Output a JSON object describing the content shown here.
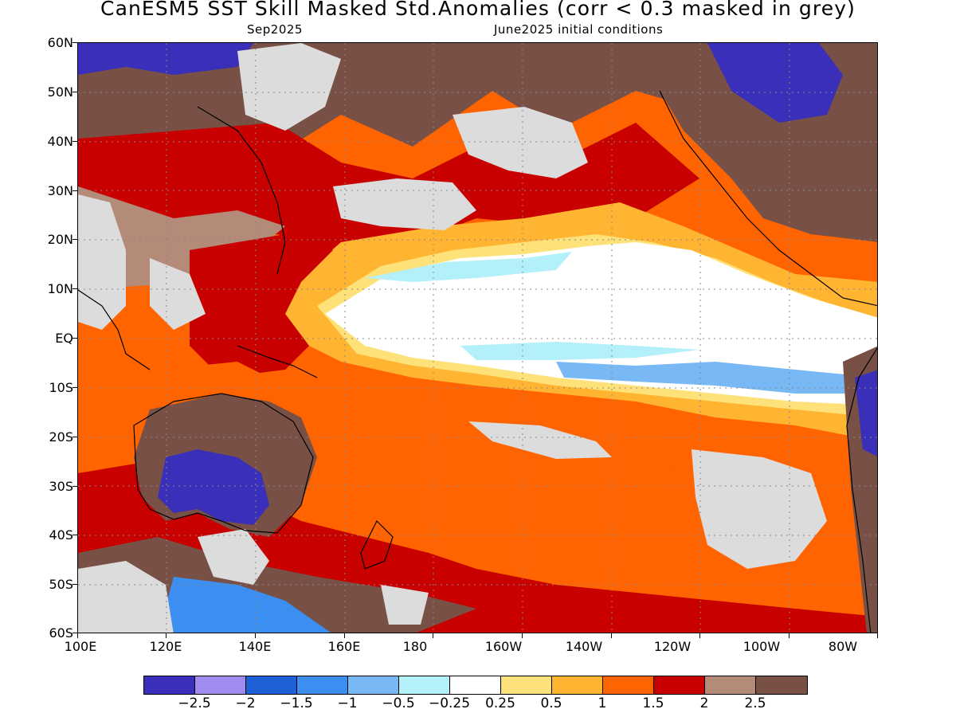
{
  "title": "CanESM5  SST Skill Masked Std.Anomalies (corr < 0.3 masked in grey)",
  "subtitle_left": "Sep2025",
  "subtitle_right": "June2025 initial conditions",
  "y_axis": {
    "labels": [
      "60N",
      "50N",
      "40N",
      "30N",
      "20N",
      "10N",
      "EQ",
      "10S",
      "20S",
      "30S",
      "40S",
      "50S",
      "60S"
    ]
  },
  "x_axis": {
    "labels": [
      "100E",
      "120E",
      "140E",
      "160E",
      "180",
      "160W",
      "140W",
      "120W",
      "100W",
      "80W"
    ]
  },
  "colorbar": {
    "colors": [
      "#3a2fb8",
      "#a08cf0",
      "#1e60d8",
      "#3c8ef0",
      "#78b8f5",
      "#b4f0fa",
      "#ffffff",
      "#ffe17a",
      "#ffb432",
      "#ff6400",
      "#c80000",
      "#b48a78",
      "#785046"
    ],
    "labels": [
      "-2.5",
      "-2",
      "-1.5",
      "-1",
      "-0.5",
      "-0.25",
      "0.25",
      "0.5",
      "1",
      "1.5",
      "2",
      "2.5"
    ]
  },
  "legend_colors": {
    "masked_grey": "#dcdcdc",
    "coastline": "#000000"
  }
}
